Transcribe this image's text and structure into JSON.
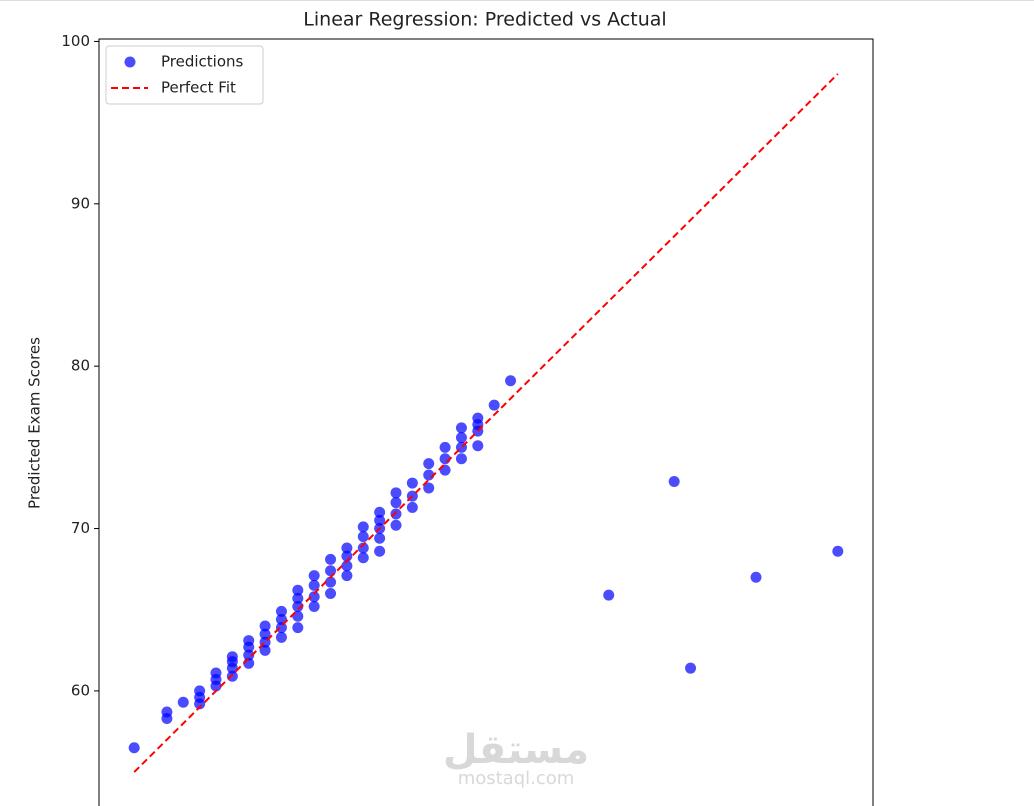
{
  "chart_data": {
    "type": "scatter",
    "title": "Linear Regression: Predicted vs Actual",
    "ylabel": "Predicted Exam Scores",
    "xlim": [
      52.85,
      100.15
    ],
    "ylim": [
      52.85,
      100.15
    ],
    "yticks": [
      60,
      70,
      80,
      90,
      100
    ],
    "legend": "upper left",
    "series": [
      {
        "name": "Predictions",
        "color": "#0000ff",
        "type": "scatter",
        "x": [
          55,
          57,
          57,
          58,
          59,
          59,
          59,
          60,
          60,
          60,
          61,
          61,
          61,
          61,
          62,
          62,
          62,
          62,
          63,
          63,
          63,
          63,
          64,
          64,
          64,
          64,
          65,
          65,
          65,
          65,
          65,
          66,
          66,
          66,
          66,
          67,
          67,
          67,
          67,
          68,
          68,
          68,
          68,
          69,
          69,
          69,
          69,
          70,
          70,
          70,
          70,
          70,
          71,
          71,
          71,
          71,
          72,
          72,
          72,
          73,
          73,
          73,
          74,
          74,
          74,
          75,
          75,
          75,
          75,
          76,
          76,
          76,
          76,
          77,
          78,
          84,
          88,
          89,
          93,
          98
        ],
        "values": [
          56.5,
          58.3,
          58.7,
          59.3,
          59.2,
          59.6,
          60.0,
          60.3,
          60.7,
          61.1,
          60.9,
          61.4,
          61.8,
          62.1,
          61.7,
          62.2,
          62.7,
          63.1,
          62.5,
          63.0,
          63.5,
          64.0,
          63.3,
          63.9,
          64.4,
          64.9,
          63.9,
          64.6,
          65.2,
          65.7,
          66.2,
          65.2,
          65.8,
          66.5,
          67.1,
          66.0,
          66.7,
          67.4,
          68.1,
          67.1,
          67.7,
          68.3,
          68.8,
          68.2,
          68.8,
          69.5,
          70.1,
          68.6,
          69.4,
          70.0,
          70.5,
          71.0,
          70.2,
          70.9,
          71.6,
          72.2,
          71.3,
          72.0,
          72.8,
          72.5,
          73.3,
          74.0,
          73.6,
          74.3,
          75.0,
          74.3,
          75.0,
          75.6,
          76.2,
          75.1,
          76.0,
          76.4,
          76.8,
          77.6,
          79.1,
          65.9,
          72.9,
          61.4,
          67.0,
          68.6
        ]
      },
      {
        "name": "Perfect Fit",
        "color": "#ff0000",
        "type": "line",
        "dashed": true,
        "x": [
          55,
          98
        ],
        "values": [
          55,
          98
        ]
      }
    ]
  },
  "watermark": {
    "logo": "مستقل",
    "site": "mostaql.com"
  }
}
